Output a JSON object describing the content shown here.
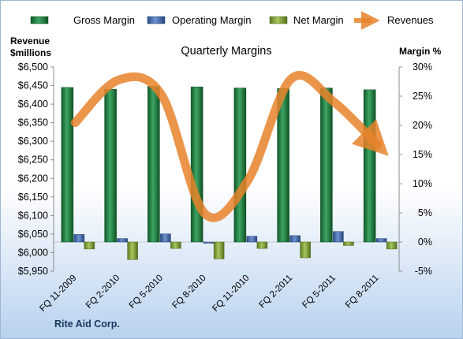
{
  "chart_data": {
    "type": "bar",
    "title": "Quarterly Margins",
    "categories": [
      "FQ 11-2009",
      "FQ 2-2010",
      "FQ 5-2010",
      "FQ 8-2010",
      "FQ 11-2010",
      "FQ 2-2011",
      "FQ 5-2011",
      "FQ 8-2011"
    ],
    "series": [
      {
        "name": "Gross Margin",
        "axis": "right",
        "color": "#1e7a3e",
        "values": [
          26.5,
          26.2,
          26.7,
          26.6,
          26.4,
          26.3,
          26.4,
          26.1
        ]
      },
      {
        "name": "Operating Margin",
        "axis": "right",
        "color": "#3f67a8",
        "values": [
          1.3,
          0.6,
          1.4,
          0.0,
          1.0,
          1.1,
          1.8,
          0.6
        ]
      },
      {
        "name": "Net Margin",
        "axis": "right",
        "color": "#7ea33a",
        "values": [
          -1.2,
          -3.0,
          -1.1,
          -2.9,
          -1.1,
          -2.7,
          -0.6,
          -1.2
        ]
      },
      {
        "name": "Revenues",
        "axis": "left",
        "type": "line",
        "color": "#e8822a",
        "values": [
          6350,
          6465,
          6425,
          6105,
          6195,
          6468,
          6405,
          6290
        ]
      }
    ],
    "left_axis": {
      "title_line1": "Revenue",
      "title_line2": "$millions",
      "ylim": [
        5950,
        6500
      ],
      "ticks": [
        "$5,950",
        "$6,000",
        "$6,050",
        "$6,100",
        "$6,150",
        "$6,200",
        "$6,250",
        "$6,300",
        "$6,350",
        "$6,400",
        "$6,450",
        "$6,500"
      ]
    },
    "right_axis": {
      "title": "Margin %",
      "ylim": [
        -5,
        30
      ],
      "ticks": [
        "-5%",
        "0%",
        "5%",
        "10%",
        "15%",
        "20%",
        "25%",
        "30%"
      ]
    },
    "footer": "Rite Aid Corp.",
    "legend_position": "top"
  }
}
